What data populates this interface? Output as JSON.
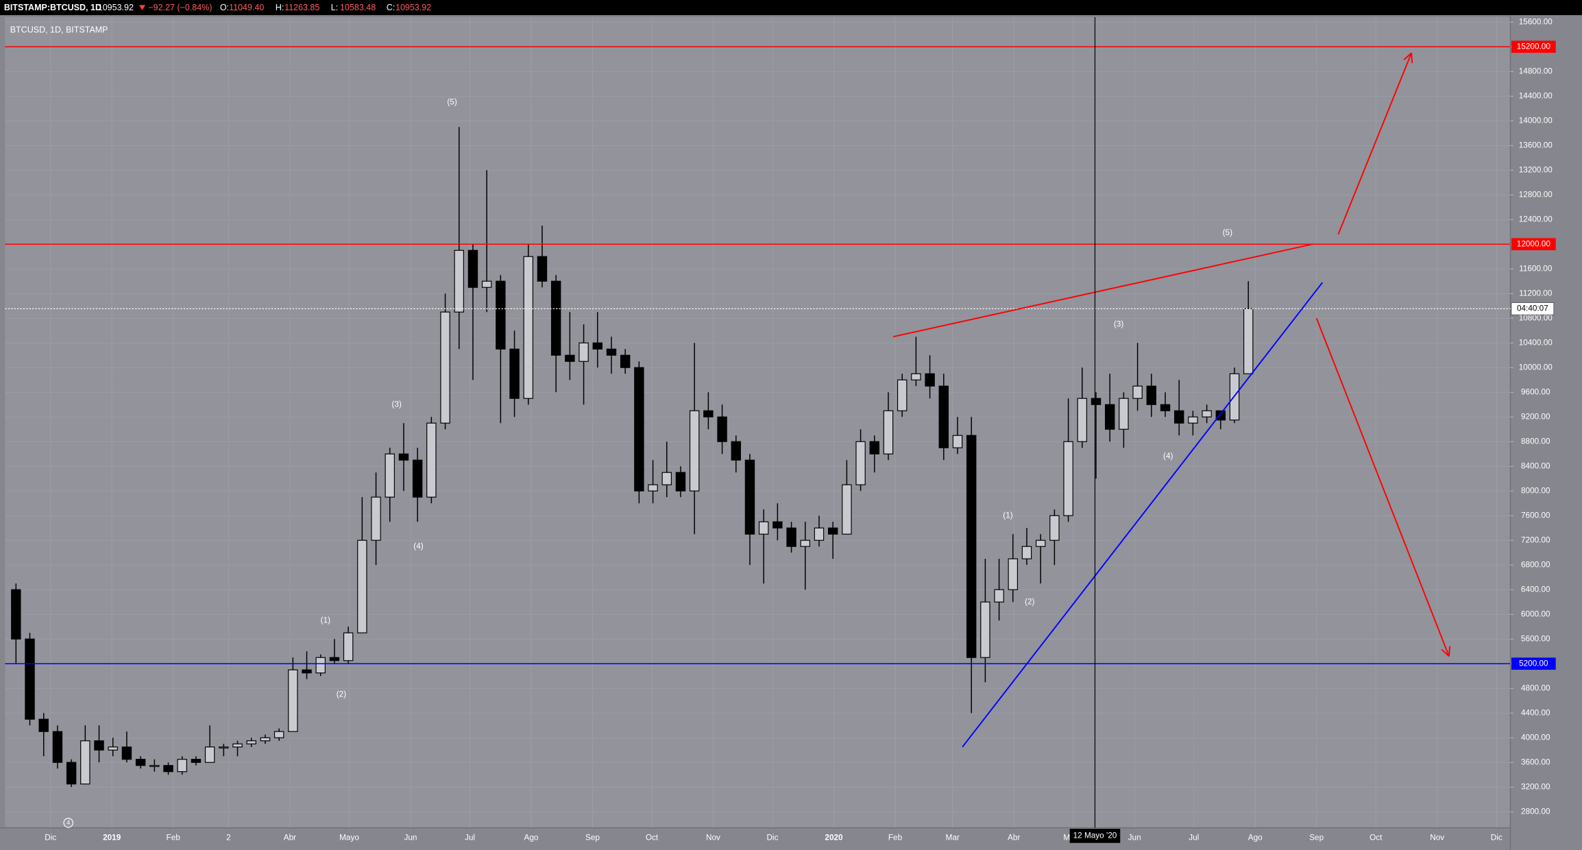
{
  "header": {
    "symbol": "BITSTAMP:BTCUSD, 1D",
    "last": "10953.92",
    "change": "−92.27 (−0.84%)",
    "ohlc": [
      {
        "label": "O:",
        "value": "11049.40"
      },
      {
        "label": "H:",
        "value": "11263.85"
      },
      {
        "label": "L:",
        "value": "10583.48"
      },
      {
        "label": "C:",
        "value": "10953.92"
      }
    ]
  },
  "chart_data": {
    "type": "candlestick",
    "legend": "BTCUSD, 1D, BITSTAMP",
    "x": [
      "2018-11-12",
      "2018-11-19",
      "2018-11-26",
      "2018-12-03",
      "2018-12-10",
      "2018-12-17",
      "2018-12-24",
      "2018-12-31",
      "2019-01-07",
      "2019-01-14",
      "2019-01-21",
      "2019-01-28",
      "2019-02-04",
      "2019-02-11",
      "2019-02-18",
      "2019-02-25",
      "2019-03-04",
      "2019-03-11",
      "2019-03-18",
      "2019-03-25",
      "2019-04-01",
      "2019-04-08",
      "2019-04-15",
      "2019-04-22",
      "2019-04-29",
      "2019-05-06",
      "2019-05-13",
      "2019-05-20",
      "2019-05-27",
      "2019-06-03",
      "2019-06-10",
      "2019-06-17",
      "2019-06-24",
      "2019-07-01",
      "2019-07-08",
      "2019-07-15",
      "2019-07-22",
      "2019-07-29",
      "2019-08-05",
      "2019-08-12",
      "2019-08-19",
      "2019-08-26",
      "2019-09-02",
      "2019-09-09",
      "2019-09-16",
      "2019-09-23",
      "2019-09-30",
      "2019-10-07",
      "2019-10-14",
      "2019-10-21",
      "2019-10-28",
      "2019-11-04",
      "2019-11-11",
      "2019-11-18",
      "2019-11-25",
      "2019-12-02",
      "2019-12-09",
      "2019-12-16",
      "2019-12-23",
      "2019-12-30",
      "2020-01-06",
      "2020-01-13",
      "2020-01-20",
      "2020-01-27",
      "2020-02-03",
      "2020-02-10",
      "2020-02-17",
      "2020-02-24",
      "2020-03-02",
      "2020-03-09",
      "2020-03-16",
      "2020-03-23",
      "2020-03-30",
      "2020-04-06",
      "2020-04-13",
      "2020-04-20",
      "2020-04-27",
      "2020-05-04",
      "2020-05-11",
      "2020-05-18",
      "2020-05-25",
      "2020-06-01",
      "2020-06-08",
      "2020-06-15",
      "2020-06-22",
      "2020-06-29",
      "2020-07-06",
      "2020-07-13",
      "2020-07-20",
      "2020-07-27"
    ],
    "open": [
      6400,
      5600,
      4300,
      4100,
      3600,
      3250,
      3950,
      3800,
      3850,
      3650,
      3550,
      3550,
      3450,
      3650,
      3600,
      3850,
      3850,
      3900,
      3950,
      4000,
      4100,
      5100,
      5050,
      5300,
      5250,
      5700,
      7200,
      7900,
      8600,
      8500,
      7900,
      9100,
      10900,
      11900,
      11300,
      11400,
      10300,
      9500,
      11800,
      11400,
      10200,
      10100,
      10400,
      10300,
      10200,
      10000,
      8000,
      8100,
      8300,
      8000,
      9300,
      9200,
      8800,
      8500,
      7300,
      7500,
      7400,
      7100,
      7200,
      7400,
      7300,
      8100,
      8800,
      8600,
      9300,
      9800,
      9900,
      9700,
      8700,
      8900,
      5300,
      6200,
      6400,
      6900,
      7100,
      7200,
      7600,
      8800,
      9500,
      9400,
      9000,
      9500,
      9700,
      9400,
      9300,
      9100,
      9200,
      9300,
      9150,
      9900
    ],
    "high": [
      6500,
      5700,
      4400,
      4200,
      3650,
      4200,
      4200,
      4000,
      4100,
      3700,
      3650,
      3600,
      3700,
      3700,
      4200,
      3900,
      3950,
      4000,
      4050,
      4150,
      5300,
      5400,
      5350,
      5600,
      5800,
      7900,
      8300,
      8700,
      9100,
      8700,
      9200,
      11200,
      13900,
      12000,
      13200,
      11500,
      10600,
      12000,
      12300,
      11500,
      10900,
      10700,
      10900,
      10500,
      10300,
      10100,
      8500,
      8800,
      8400,
      10400,
      9600,
      9400,
      8900,
      8600,
      7700,
      7800,
      7500,
      7500,
      7600,
      7500,
      8500,
      9000,
      8900,
      9600,
      9900,
      10500,
      10200,
      9900,
      9200,
      9200,
      6900,
      6900,
      7300,
      7400,
      7300,
      7700,
      9500,
      10000,
      9600,
      9900,
      9600,
      10400,
      9900,
      9600,
      9800,
      9300,
      9400,
      9300,
      10000,
      11400
    ],
    "low": [
      5200,
      4200,
      3700,
      3500,
      3200,
      3250,
      3600,
      3700,
      3600,
      3500,
      3450,
      3400,
      3400,
      3550,
      3600,
      3700,
      3700,
      3850,
      3900,
      3950,
      4100,
      4950,
      5000,
      5200,
      5200,
      5700,
      6800,
      7500,
      8000,
      7500,
      7800,
      9000,
      10300,
      9800,
      10900,
      9100,
      9200,
      9400,
      11300,
      9600,
      9800,
      9400,
      10000,
      9900,
      9900,
      7800,
      7800,
      7900,
      7900,
      7300,
      9000,
      8600,
      8300,
      6800,
      6500,
      7200,
      7000,
      6400,
      7100,
      6900,
      7300,
      8000,
      8300,
      8500,
      9200,
      9700,
      9500,
      8500,
      8600,
      4400,
      4900,
      5900,
      6200,
      6800,
      6500,
      6800,
      7500,
      8700,
      8200,
      8800,
      8700,
      9300,
      9200,
      9200,
      8900,
      8900,
      9100,
      9000,
      9100,
      9900
    ],
    "close": [
      5600,
      4300,
      4100,
      3600,
      3250,
      3950,
      3800,
      3850,
      3650,
      3550,
      3550,
      3450,
      3650,
      3600,
      3850,
      3850,
      3900,
      3950,
      4000,
      4100,
      5100,
      5050,
      5300,
      5250,
      5700,
      7200,
      7900,
      8600,
      8500,
      7900,
      9100,
      10900,
      11900,
      11300,
      11400,
      10300,
      9500,
      11800,
      11400,
      10200,
      10100,
      10400,
      10300,
      10200,
      10000,
      8000,
      8100,
      8300,
      8000,
      9300,
      9200,
      8800,
      8500,
      7300,
      7500,
      7400,
      7100,
      7200,
      7400,
      7300,
      8100,
      8800,
      8600,
      9300,
      9800,
      9900,
      9700,
      8700,
      8900,
      5300,
      6200,
      6400,
      6900,
      7100,
      7200,
      7600,
      8800,
      9500,
      9400,
      9000,
      9500,
      9700,
      9400,
      9300,
      9100,
      9200,
      9300,
      9150,
      9900,
      10953.92
    ],
    "up_color": "#c9cad0",
    "down_color": "#000000",
    "xlim": [
      "2018-11-08",
      "2020-12-08"
    ],
    "xticks": [
      {
        "value": "2018-12-01",
        "label": "Dic"
      },
      {
        "value": "2019-01-01",
        "label": "2019"
      },
      {
        "value": "2019-02-01",
        "label": "Feb"
      },
      {
        "value": "2019-03-01",
        "label": "2"
      },
      {
        "value": "2019-04-01",
        "label": "Abr"
      },
      {
        "value": "2019-05-01",
        "label": "Mayo"
      },
      {
        "value": "2019-06-01",
        "label": "Jun"
      },
      {
        "value": "2019-07-01",
        "label": "Jul"
      },
      {
        "value": "2019-08-01",
        "label": "Ago"
      },
      {
        "value": "2019-09-01",
        "label": "Sep"
      },
      {
        "value": "2019-10-01",
        "label": "Oct"
      },
      {
        "value": "2019-11-01",
        "label": "Nov"
      },
      {
        "value": "2019-12-01",
        "label": "Dic"
      },
      {
        "value": "2020-01-01",
        "label": "2020"
      },
      {
        "value": "2020-02-01",
        "label": "Feb"
      },
      {
        "value": "2020-03-01",
        "label": "Mar"
      },
      {
        "value": "2020-04-01",
        "label": "Abr"
      },
      {
        "value": "2020-05-01",
        "label": "Mayo"
      },
      {
        "value": "2020-06-01",
        "label": "Jun"
      },
      {
        "value": "2020-07-01",
        "label": "Jul"
      },
      {
        "value": "2020-08-01",
        "label": "Ago"
      },
      {
        "value": "2020-09-01",
        "label": "Sep"
      },
      {
        "value": "2020-10-01",
        "label": "Oct"
      },
      {
        "value": "2020-11-01",
        "label": "Nov"
      },
      {
        "value": "2020-12-01",
        "label": "Dic"
      }
    ],
    "ylim": [
      2540,
      15680
    ],
    "yticks": [
      {
        "value": 2800,
        "label": "2800.00"
      },
      {
        "value": 3200,
        "label": "3200.00"
      },
      {
        "value": 3600,
        "label": "3600.00"
      },
      {
        "value": 4000,
        "label": "4000.00"
      },
      {
        "value": 4400,
        "label": "4400.00"
      },
      {
        "value": 4800,
        "label": "4800.00"
      },
      {
        "value": 5200,
        "label": "5200.00"
      },
      {
        "value": 5600,
        "label": "5600.00"
      },
      {
        "value": 6000,
        "label": "6000.00"
      },
      {
        "value": 6400,
        "label": "6400.00"
      },
      {
        "value": 6800,
        "label": "6800.00"
      },
      {
        "value": 7200,
        "label": "7200.00"
      },
      {
        "value": 7600,
        "label": "7600.00"
      },
      {
        "value": 8000,
        "label": "8000.00"
      },
      {
        "value": 8400,
        "label": "8400.00"
      },
      {
        "value": 8800,
        "label": "8800.00"
      },
      {
        "value": 9200,
        "label": "9200.00"
      },
      {
        "value": 9600,
        "label": "9600.00"
      },
      {
        "value": 10000,
        "label": "10000.00"
      },
      {
        "value": 10400,
        "label": "10400.00"
      },
      {
        "value": 10800,
        "label": "10800.00"
      },
      {
        "value": 11200,
        "label": "11200.00"
      },
      {
        "value": 11600,
        "label": "11600.00"
      },
      {
        "value": 12000,
        "label": "12000.00"
      },
      {
        "value": 12400,
        "label": "12400.00"
      },
      {
        "value": 12800,
        "label": "12800.00"
      },
      {
        "value": 13200,
        "label": "13200.00"
      },
      {
        "value": 13600,
        "label": "13600.00"
      },
      {
        "value": 14000,
        "label": "14000.00"
      },
      {
        "value": 14400,
        "label": "14400.00"
      },
      {
        "value": 14800,
        "label": "14800.00"
      },
      {
        "value": 15200,
        "label": "15200.00"
      },
      {
        "value": 15600,
        "label": "15600.00"
      }
    ],
    "grid": true,
    "levels": [
      {
        "value": 15200,
        "label": "15200.00",
        "color": "#ff0000"
      },
      {
        "value": 12000,
        "label": "12000.00",
        "color": "#ff0000"
      },
      {
        "value": 5200,
        "label": "5200.00",
        "color": "#0000ff"
      }
    ],
    "last_price": {
      "value": 10953.92,
      "label": "04:40:07"
    },
    "crosshair": {
      "x": "2020-05-12",
      "label": "12 Mayo '20"
    },
    "drawings": [
      {
        "color": "#ff0000",
        "arrow": false,
        "points": [
          {
            "x": "2020-01-31",
            "y": 10500
          },
          {
            "x": "2020-08-30",
            "y": 12000
          }
        ]
      },
      {
        "color": "#0000ff",
        "arrow": false,
        "points": [
          {
            "x": "2020-03-06",
            "y": 3850
          },
          {
            "x": "2020-09-04",
            "y": 11380
          }
        ]
      },
      {
        "color": "#ff0000",
        "arrow": true,
        "points": [
          {
            "x": "2020-09-12",
            "y": 12160
          },
          {
            "x": "2020-10-19",
            "y": 15100
          }
        ]
      },
      {
        "color": "#ff0000",
        "arrow": true,
        "points": [
          {
            "x": "2020-09-01",
            "y": 10800
          },
          {
            "x": "2020-11-07",
            "y": 5320
          }
        ]
      }
    ],
    "annotations": [
      {
        "text": "(5)",
        "x": "2019-06-22",
        "y": 14300
      },
      {
        "text": "(3)",
        "x": "2019-05-25",
        "y": 9400
      },
      {
        "text": "(4)",
        "x": "2019-06-05",
        "y": 7100
      },
      {
        "text": "(1)",
        "x": "2019-04-19",
        "y": 5900
      },
      {
        "text": "(2)",
        "x": "2019-04-27",
        "y": 4700
      },
      {
        "text": "4",
        "x": "2018-12-10",
        "y": 2620,
        "circled": true
      },
      {
        "text": "(1)",
        "x": "2020-03-29",
        "y": 7600
      },
      {
        "text": "(2)",
        "x": "2020-04-09",
        "y": 6200
      },
      {
        "text": "(3)",
        "x": "2020-05-24",
        "y": 10700
      },
      {
        "text": "(4)",
        "x": "2020-06-18",
        "y": 8560
      },
      {
        "text": "(5)",
        "x": "2020-07-18",
        "y": 12180
      }
    ]
  }
}
